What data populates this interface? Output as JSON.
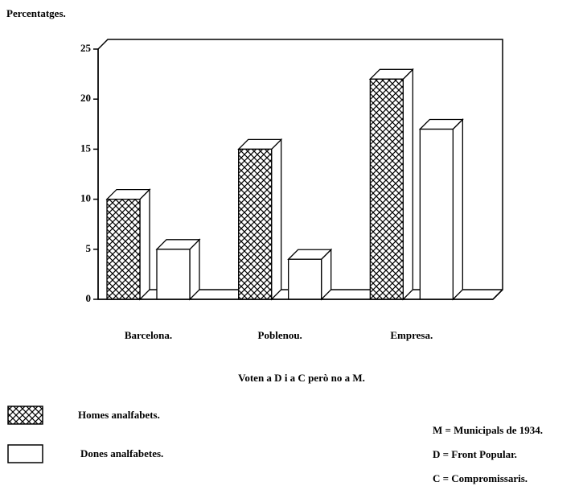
{
  "chart_data": {
    "type": "bar3d",
    "ylabel": "Percentatges.",
    "subtitle": "Voten a D i a C però no a M.",
    "categories": [
      "Barcelona.",
      "Poblenou.",
      "Empresa."
    ],
    "series": [
      {
        "name": "Homes analfabets.",
        "color": "#000000",
        "pattern": "crosshatch",
        "values": [
          10,
          15,
          22
        ]
      },
      {
        "name": "Dones analfabetes.",
        "color": "#ffffff",
        "pattern": "none",
        "values": [
          5,
          4,
          17
        ]
      }
    ],
    "ylim": [
      0,
      25
    ],
    "yticks": [
      0,
      5,
      10,
      15,
      20,
      25
    ],
    "grid": false,
    "notes": [
      "M = Municipals de 1934.",
      "D = Front Popular.",
      "C = Compromissaris."
    ]
  }
}
